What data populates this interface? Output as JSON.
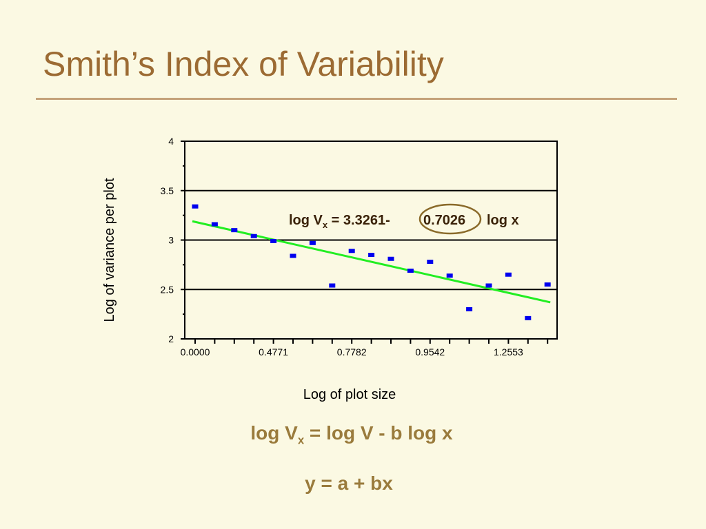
{
  "slide": {
    "title": "Smith’s Index of Variability",
    "formula_main_prefix": "log V",
    "formula_main_sub": "x",
    "formula_main_suffix": " = log V - b log x",
    "formula_linear": "y = a + bx"
  },
  "colors": {
    "title": "#9c6b33",
    "formula": "#9a7b3c",
    "points": "#0000ee",
    "trendline": "#22ee22",
    "ellipse": "#8a6a2a"
  },
  "chart_data": {
    "type": "scatter",
    "xlabel": "Log of plot size",
    "ylabel": "Log of variance per plot",
    "ylim": [
      2,
      4
    ],
    "yticks": [
      "2",
      "2.5",
      "3",
      "3.5",
      "4"
    ],
    "xtick_labels": [
      "0.0000",
      "0.4771",
      "0.7782",
      "0.9542",
      "1.2553"
    ],
    "grid": "horizontal",
    "series": [
      {
        "values": [
          3.34,
          3.16,
          3.1,
          3.04,
          2.99,
          2.84,
          2.97,
          2.54,
          2.89,
          2.85,
          2.81,
          2.69,
          2.78,
          2.64,
          2.3,
          2.54,
          2.65,
          2.21,
          2.55
        ]
      }
    ],
    "trendline": {
      "start": 3.19,
      "end": 2.37
    },
    "annotation": {
      "prefix": "log V",
      "sub": "x",
      "mid": " = 3.3261- ",
      "coef": "0.7026",
      "suffix": " log x"
    }
  }
}
